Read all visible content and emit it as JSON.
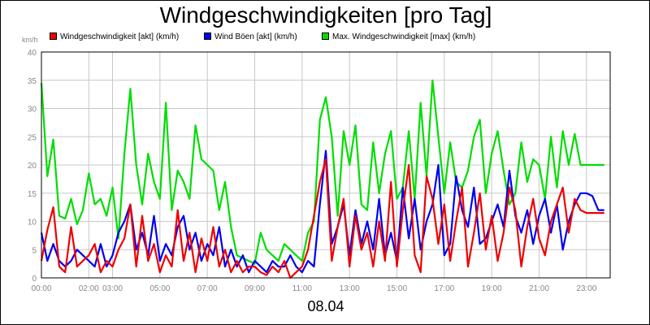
{
  "chart_data": {
    "type": "line",
    "title": "Windgeschwindigkeiten [pro Tag]",
    "xlabel": "08.04",
    "ylabel": "km/h",
    "ylim": [
      0,
      40
    ],
    "yticks": [
      "0",
      "5",
      "10",
      "15",
      "20",
      "25",
      "30",
      "35",
      "40"
    ],
    "xlim": [
      0,
      24
    ],
    "xticks": [
      {
        "x": 0,
        "label": "00:00"
      },
      {
        "x": 2,
        "label": "02:00"
      },
      {
        "x": 3,
        "label": "03:00"
      },
      {
        "x": 5,
        "label": "05:00"
      },
      {
        "x": 7,
        "label": "07:00"
      },
      {
        "x": 9,
        "label": "09:00"
      },
      {
        "x": 11,
        "label": "11:00"
      },
      {
        "x": 13,
        "label": "13:00"
      },
      {
        "x": 15,
        "label": "15:00"
      },
      {
        "x": 17,
        "label": "17:00"
      },
      {
        "x": 19,
        "label": "19:00"
      },
      {
        "x": 21,
        "label": "21:00"
      },
      {
        "x": 23,
        "label": "23:00"
      }
    ],
    "grid": true,
    "legend_position": "top",
    "series": [
      {
        "name": "Max. Windgeschwindigkeit [max] (km/h)",
        "color": "#00dd00",
        "x": [
          0,
          0.25,
          0.5,
          0.75,
          1,
          1.25,
          1.5,
          1.75,
          2,
          2.25,
          2.5,
          2.75,
          3,
          3.25,
          3.5,
          3.75,
          4,
          4.25,
          4.5,
          4.75,
          5,
          5.25,
          5.5,
          5.75,
          6,
          6.25,
          6.5,
          6.75,
          7,
          7.25,
          7.5,
          7.75,
          8,
          8.25,
          8.5,
          8.75,
          9,
          9.25,
          9.5,
          9.75,
          10,
          10.25,
          10.5,
          10.75,
          11,
          11.25,
          11.5,
          11.75,
          12,
          12.25,
          12.5,
          12.75,
          13,
          13.25,
          13.5,
          13.75,
          14,
          14.25,
          14.5,
          14.75,
          15,
          15.25,
          15.5,
          15.75,
          16,
          16.25,
          16.5,
          16.75,
          17,
          17.25,
          17.5,
          17.75,
          18,
          18.25,
          18.5,
          18.75,
          19,
          19.25,
          19.5,
          19.75,
          20,
          20.25,
          20.5,
          20.75,
          21,
          21.25,
          21.5,
          21.75,
          22,
          22.25,
          22.5,
          22.75,
          23,
          23.25,
          23.5,
          23.75,
          24
        ],
        "values": [
          34.5,
          18,
          24.5,
          11,
          10.5,
          14,
          9.5,
          12,
          18.5,
          13,
          14,
          11,
          16,
          7,
          22,
          33.5,
          20,
          13,
          22,
          17,
          14,
          31,
          12,
          19,
          17,
          14,
          27,
          21,
          20,
          19,
          12,
          17,
          9,
          4,
          3.5,
          3,
          2.5,
          8,
          5,
          4,
          3,
          6,
          5,
          4,
          3,
          8,
          10,
          28,
          32,
          25,
          11,
          26,
          20,
          27,
          13,
          12,
          24,
          15,
          22,
          26,
          14,
          16,
          26,
          14,
          31,
          18,
          35,
          25,
          15,
          24,
          17,
          16,
          19,
          25,
          28,
          15,
          22,
          26,
          19,
          13,
          15,
          24,
          17,
          21,
          20,
          14,
          25,
          16,
          26,
          20,
          25.5,
          20,
          20,
          20,
          20,
          20,
          20
        ],
        "draw_to": 96
      },
      {
        "name": "Wind Böen [akt] (km/h)",
        "color": "#0000ee",
        "x": [
          0,
          0.25,
          0.5,
          0.75,
          1,
          1.25,
          1.5,
          1.75,
          2,
          2.25,
          2.5,
          2.75,
          3,
          3.25,
          3.5,
          3.75,
          4,
          4.25,
          4.5,
          4.75,
          5,
          5.25,
          5.5,
          5.75,
          6,
          6.25,
          6.5,
          6.75,
          7,
          7.25,
          7.5,
          7.75,
          8,
          8.25,
          8.5,
          8.75,
          9,
          9.25,
          9.5,
          9.75,
          10,
          10.25,
          10.5,
          10.75,
          11,
          11.25,
          11.5,
          11.75,
          12,
          12.25,
          12.5,
          12.75,
          13,
          13.25,
          13.5,
          13.75,
          14,
          14.25,
          14.5,
          14.75,
          15,
          15.25,
          15.5,
          15.75,
          16,
          16.25,
          16.5,
          16.75,
          17,
          17.25,
          17.5,
          17.75,
          18,
          18.25,
          18.5,
          18.75,
          19,
          19.25,
          19.5,
          19.75,
          20,
          20.25,
          20.5,
          20.75,
          21,
          21.25,
          21.5,
          21.75,
          22,
          22.25,
          22.5,
          22.75,
          23,
          23.25,
          23.5,
          23.75,
          24
        ],
        "values": [
          8,
          3,
          6,
          3,
          2,
          3,
          5,
          4,
          3,
          2,
          6,
          2,
          4,
          8,
          10,
          13,
          5,
          8,
          4,
          11,
          3,
          6,
          4,
          9,
          11,
          5,
          8,
          3,
          6,
          4,
          9,
          2,
          5,
          2,
          4,
          1,
          3,
          2,
          1,
          3,
          2,
          2,
          4,
          2,
          1,
          3,
          2,
          13,
          22.5,
          6,
          9,
          13,
          4,
          12,
          6,
          10,
          5,
          14,
          4,
          8,
          3,
          16,
          7,
          14,
          5,
          10,
          13,
          20,
          4,
          6,
          18,
          12,
          9,
          16,
          6,
          7,
          10,
          13,
          9,
          19,
          11,
          8,
          12,
          6,
          11,
          14,
          8,
          13,
          5,
          10,
          13,
          15,
          15,
          14.5,
          12,
          12,
          12
        ],
        "draw_to": 96
      },
      {
        "name": "Windgeschwindigkeit [akt] (km/h)",
        "color": "#ee0000",
        "x": [
          0,
          0.25,
          0.5,
          0.75,
          1,
          1.25,
          1.5,
          1.75,
          2,
          2.25,
          2.5,
          2.75,
          3,
          3.25,
          3.5,
          3.75,
          4,
          4.25,
          4.5,
          4.75,
          5,
          5.25,
          5.5,
          5.75,
          6,
          6.25,
          6.5,
          6.75,
          7,
          7.25,
          7.5,
          7.75,
          8,
          8.25,
          8.5,
          8.75,
          9,
          9.25,
          9.5,
          9.75,
          10,
          10.25,
          10.5,
          10.75,
          11,
          11.25,
          11.5,
          11.75,
          12,
          12.25,
          12.5,
          12.75,
          13,
          13.25,
          13.5,
          13.75,
          14,
          14.25,
          14.5,
          14.75,
          15,
          15.25,
          15.5,
          15.75,
          16,
          16.25,
          16.5,
          16.75,
          17,
          17.25,
          17.5,
          17.75,
          18,
          18.25,
          18.5,
          18.75,
          19,
          19.25,
          19.5,
          19.75,
          20,
          20.25,
          20.5,
          20.75,
          21,
          21.25,
          21.5,
          21.75,
          22,
          22.25,
          22.5,
          22.75,
          23,
          23.25,
          23.5,
          23.75,
          24
        ],
        "values": [
          3,
          8.5,
          12.5,
          2,
          1,
          9,
          2,
          3,
          4,
          6,
          1,
          3,
          2,
          5,
          7,
          13,
          2,
          11,
          3,
          6,
          1,
          4,
          2,
          12,
          3,
          8,
          1,
          7,
          3,
          9,
          2,
          5,
          1,
          3,
          1,
          2,
          2,
          1,
          0.5,
          2,
          1,
          3,
          0,
          1,
          2,
          5,
          11,
          17,
          21,
          3,
          9,
          14,
          2,
          11,
          5,
          8,
          2,
          10,
          3,
          17,
          2,
          12,
          20,
          4,
          1,
          18,
          14,
          6,
          13,
          3,
          10,
          16,
          2,
          8,
          15,
          5,
          11,
          3,
          8,
          16,
          12,
          2,
          9,
          14,
          7,
          4,
          10,
          13,
          16,
          8,
          14,
          12,
          11.5,
          11.5,
          11.5,
          11.5,
          11.5
        ],
        "draw_to": 96
      }
    ]
  },
  "legend_items": [
    {
      "label": "Windgeschwindigkeit [akt] (km/h)",
      "color": "#ee0000"
    },
    {
      "label": "Wind Böen [akt] (km/h)",
      "color": "#0000ee"
    },
    {
      "label": "Max. Windgeschwindigkeit [max] (km/h)",
      "color": "#00dd00"
    }
  ]
}
